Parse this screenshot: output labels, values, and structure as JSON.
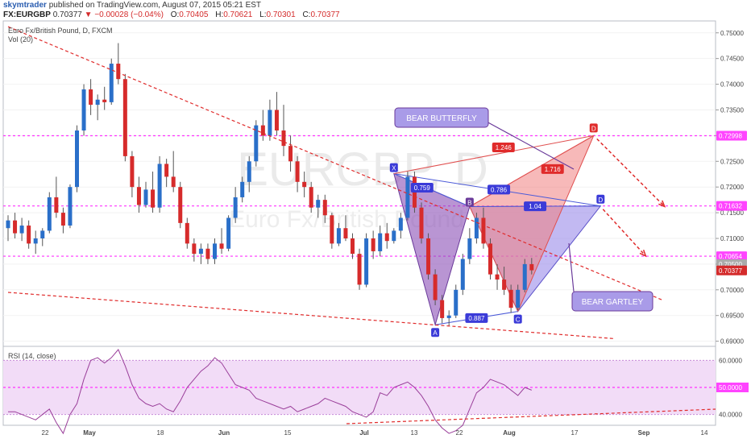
{
  "header": {
    "author": "skymtrader",
    "published": "published on TradingView.com, August 07, 2015 05:21 EST",
    "symbol": "FX:EURGBP",
    "last": "0.70377",
    "change": "−0.00028 (−0.04%)",
    "o_label": "O:",
    "o_value": "0.70405",
    "h_label": "H:",
    "h_value": "0.70621",
    "l_label": "L:",
    "l_value": "0.70301",
    "c_label": "C:",
    "c_value": "0.70377",
    "down_arrow": "▼"
  },
  "pane": {
    "title": "Euro Fx/British Pound, D, FXCM",
    "vol_label": "Vol (20)",
    "rsi_label": "RSI (14, close)",
    "watermark_symbol": "EURGBP, D",
    "watermark_name": "Euro Fx/British Pound"
  },
  "chart_data": [
    {
      "type": "candlestick",
      "title": "Euro Fx/British Pound, D, FXCM",
      "y_range": [
        0.689,
        0.752
      ],
      "y_ticks": [
        "0.75000",
        "0.74500",
        "0.74000",
        "0.73500",
        "0.73000",
        "0.72500",
        "0.72000",
        "0.71500",
        "0.71000",
        "0.70500",
        "0.70000",
        "0.69500",
        "0.69000"
      ],
      "x_ticks": [
        "22",
        "May",
        "18",
        "Jun",
        "15",
        "Jul",
        "13",
        "22",
        "Aug",
        "17",
        "Sep",
        "14"
      ],
      "price_tags": [
        {
          "text": "0.72998",
          "value": 0.72998,
          "color": "#ff44ff"
        },
        {
          "text": "0.71632",
          "value": 0.71632,
          "color": "#ff44ff"
        },
        {
          "text": "0.70654",
          "value": 0.70654,
          "color": "#ff44ff"
        },
        {
          "text": "0.70500",
          "value": 0.705,
          "color": "#aaaaaa"
        },
        {
          "text": "0.70377",
          "value": 0.70377,
          "color": "#d42b2b"
        }
      ],
      "horizontal_levels": [
        0.72998,
        0.71632,
        0.70654
      ],
      "candles": [
        [
          0.712,
          0.7145,
          0.7095,
          0.7135
        ],
        [
          0.7135,
          0.715,
          0.71,
          0.711
        ],
        [
          0.711,
          0.714,
          0.7095,
          0.7125
        ],
        [
          0.7125,
          0.7135,
          0.708,
          0.709
        ],
        [
          0.709,
          0.7115,
          0.707,
          0.71
        ],
        [
          0.71,
          0.712,
          0.7085,
          0.7115
        ],
        [
          0.7115,
          0.719,
          0.711,
          0.718
        ],
        [
          0.718,
          0.722,
          0.714,
          0.715
        ],
        [
          0.715,
          0.716,
          0.711,
          0.7125
        ],
        [
          0.7125,
          0.7205,
          0.712,
          0.72
        ],
        [
          0.72,
          0.732,
          0.719,
          0.731
        ],
        [
          0.731,
          0.74,
          0.73,
          0.739
        ],
        [
          0.739,
          0.741,
          0.734,
          0.736
        ],
        [
          0.736,
          0.738,
          0.733,
          0.737
        ],
        [
          0.737,
          0.7395,
          0.735,
          0.7365
        ],
        [
          0.7365,
          0.745,
          0.736,
          0.744
        ],
        [
          0.744,
          0.748,
          0.74,
          0.741
        ],
        [
          0.741,
          0.742,
          0.725,
          0.726
        ],
        [
          0.726,
          0.727,
          0.718,
          0.72
        ],
        [
          0.72,
          0.722,
          0.715,
          0.7165
        ],
        [
          0.7165,
          0.721,
          0.716,
          0.7195
        ],
        [
          0.7195,
          0.723,
          0.715,
          0.716
        ],
        [
          0.716,
          0.726,
          0.715,
          0.7245
        ],
        [
          0.7245,
          0.7255,
          0.72,
          0.722
        ],
        [
          0.722,
          0.727,
          0.719,
          0.72
        ],
        [
          0.72,
          0.721,
          0.712,
          0.713
        ],
        [
          0.713,
          0.714,
          0.708,
          0.709
        ],
        [
          0.709,
          0.71,
          0.7055,
          0.707
        ],
        [
          0.707,
          0.709,
          0.705,
          0.708
        ],
        [
          0.708,
          0.709,
          0.705,
          0.706
        ],
        [
          0.706,
          0.71,
          0.705,
          0.709
        ],
        [
          0.709,
          0.712,
          0.707,
          0.708
        ],
        [
          0.708,
          0.7145,
          0.7075,
          0.714
        ],
        [
          0.714,
          0.72,
          0.713,
          0.718
        ],
        [
          0.718,
          0.722,
          0.717,
          0.721
        ],
        [
          0.721,
          0.726,
          0.719,
          0.725
        ],
        [
          0.725,
          0.733,
          0.724,
          0.732
        ],
        [
          0.732,
          0.735,
          0.729,
          0.73
        ],
        [
          0.73,
          0.737,
          0.729,
          0.735
        ],
        [
          0.735,
          0.7385,
          0.73,
          0.731
        ],
        [
          0.731,
          0.736,
          0.726,
          0.728
        ],
        [
          0.728,
          0.73,
          0.723,
          0.725
        ],
        [
          0.725,
          0.726,
          0.719,
          0.721
        ],
        [
          0.721,
          0.723,
          0.718,
          0.72
        ],
        [
          0.72,
          0.721,
          0.715,
          0.716
        ],
        [
          0.716,
          0.7185,
          0.714,
          0.7175
        ],
        [
          0.7175,
          0.7185,
          0.713,
          0.7145
        ],
        [
          0.7145,
          0.715,
          0.708,
          0.709
        ],
        [
          0.709,
          0.713,
          0.7085,
          0.712
        ],
        [
          0.712,
          0.7145,
          0.7095,
          0.71
        ],
        [
          0.71,
          0.711,
          0.706,
          0.707
        ],
        [
          0.707,
          0.708,
          0.7,
          0.701
        ],
        [
          0.701,
          0.711,
          0.7005,
          0.71
        ],
        [
          0.71,
          0.7115,
          0.706,
          0.7075
        ],
        [
          0.7075,
          0.7125,
          0.7065,
          0.711
        ],
        [
          0.711,
          0.713,
          0.708,
          0.7095
        ],
        [
          0.7095,
          0.712,
          0.709,
          0.7115
        ],
        [
          0.7115,
          0.715,
          0.71,
          0.714
        ],
        [
          0.714,
          0.723,
          0.7135,
          0.722
        ],
        [
          0.722,
          0.723,
          0.715,
          0.716
        ],
        [
          0.716,
          0.717,
          0.709,
          0.71
        ],
        [
          0.71,
          0.711,
          0.702,
          0.703
        ],
        [
          0.703,
          0.704,
          0.697,
          0.698
        ],
        [
          0.698,
          0.699,
          0.6935,
          0.6945
        ],
        [
          0.6945,
          0.696,
          0.693,
          0.695
        ],
        [
          0.695,
          0.701,
          0.6945,
          0.7
        ],
        [
          0.7,
          0.707,
          0.699,
          0.706
        ],
        [
          0.706,
          0.712,
          0.705,
          0.71
        ],
        [
          0.71,
          0.715,
          0.709,
          0.714
        ],
        [
          0.714,
          0.716,
          0.708,
          0.709
        ],
        [
          0.709,
          0.71,
          0.702,
          0.703
        ],
        [
          0.703,
          0.705,
          0.7,
          0.702
        ],
        [
          0.702,
          0.7045,
          0.699,
          0.7
        ],
        [
          0.7,
          0.701,
          0.6955,
          0.6965
        ],
        [
          0.6965,
          0.701,
          0.696,
          0.7
        ],
        [
          0.7,
          0.706,
          0.6995,
          0.705
        ],
        [
          0.705,
          0.7062,
          0.703,
          0.7038
        ]
      ],
      "trendlines": [
        {
          "from": [
            0,
            0.7512
          ],
          "to": [
            95,
            0.698
          ],
          "style": "dashed",
          "color": "#e02b2b"
        },
        {
          "from": [
            0,
            0.6995
          ],
          "to": [
            88,
            0.6905
          ],
          "style": "dashed",
          "color": "#e02b2b"
        }
      ],
      "pattern_points": {
        "X": 0.7226,
        "A": 0.6932,
        "B": 0.7162,
        "C": 0.6958,
        "D_gartley": 0.7163,
        "D_butterfly": 0.73
      },
      "pattern_labels": [
        "X",
        "A",
        "B",
        "C",
        "D",
        "D"
      ],
      "ratios": [
        "0.759",
        "0.786",
        "1.04",
        "0.887",
        "1.246",
        "1.716"
      ],
      "annotations": [
        "BEAR BUTTERFLY",
        "BEAR GARTLEY"
      ]
    },
    {
      "type": "line",
      "title": "RSI (14, close)",
      "y_range": [
        36,
        64
      ],
      "y_ticks": [
        "60.0000",
        "50.0000",
        "40.0000"
      ],
      "band": [
        40,
        60
      ],
      "midline": 50,
      "values": [
        41,
        41,
        40,
        39,
        38,
        40,
        42,
        37,
        33,
        40,
        44,
        53,
        60,
        61,
        59,
        61,
        64,
        58,
        51,
        46,
        44,
        43,
        44,
        42,
        41,
        45,
        50,
        53,
        56,
        58,
        61,
        59,
        55,
        51,
        50,
        49,
        46,
        45,
        44,
        43,
        42,
        43,
        41,
        42,
        43,
        44,
        46,
        45,
        44,
        43,
        41,
        40,
        39,
        41,
        48,
        47,
        50,
        51,
        52,
        50,
        47,
        43,
        38,
        35,
        33,
        34,
        36,
        42,
        48,
        50,
        53,
        52,
        51,
        49,
        47,
        50,
        49
      ]
    }
  ]
}
